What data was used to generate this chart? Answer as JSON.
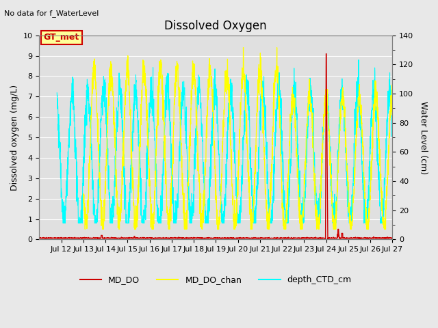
{
  "title": "Dissolved Oxygen",
  "top_left_text": "No data for f_WaterLevel",
  "ylabel_left": "Dissolved oxygen (mg/L)",
  "ylabel_right": "Water Level (cm)",
  "ylim_left": [
    0.0,
    10.0
  ],
  "ylim_right": [
    0,
    140
  ],
  "yticks_left": [
    0.0,
    1.0,
    2.0,
    3.0,
    4.0,
    5.0,
    6.0,
    7.0,
    8.0,
    9.0,
    10.0
  ],
  "yticks_right": [
    0,
    20,
    40,
    60,
    80,
    100,
    120,
    140
  ],
  "xtick_labels": [
    "Jul 12",
    "Jul 13",
    "Jul 14",
    "Jul 15",
    "Jul 16",
    "Jul 17",
    "Jul 18",
    "Jul 19",
    "Jul 20",
    "Jul 21",
    "Jul 22",
    "Jul 23",
    "Jul 24",
    "Jul 25",
    "Jul 26",
    "Jul 27"
  ],
  "bg_color": "#e8e8e8",
  "plot_bg_color": "#e0e0e0",
  "grid_color": "#ffffff",
  "color_MD_DO": "#cc0000",
  "color_MD_DO_chan": "#ffff00",
  "color_depth_CTD_cm": "cyan",
  "annotation_box_text": "GT_met",
  "annotation_box_facecolor": "#ffff99",
  "annotation_box_edgecolor": "#cc0000",
  "legend_labels": [
    "MD_DO",
    "MD_DO_chan",
    "depth_CTD_cm"
  ],
  "period_chan": 0.75,
  "period_depth": 0.72
}
